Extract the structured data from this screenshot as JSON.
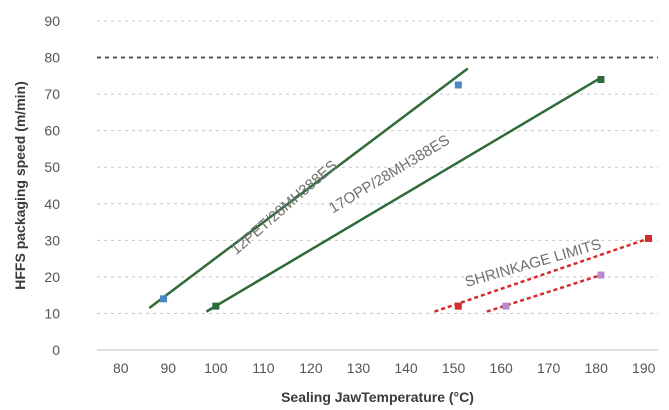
{
  "chart_data": {
    "type": "scatter",
    "title": "",
    "xlabel": "Sealing JawTemperature (°C)",
    "ylabel": "HFFS packaging speed (m/min)",
    "xlim": [
      75,
      193
    ],
    "ylim": [
      0,
      90
    ],
    "xticks": [
      80,
      90,
      100,
      110,
      120,
      130,
      140,
      150,
      160,
      170,
      180,
      190
    ],
    "yticks": [
      0,
      10,
      20,
      30,
      40,
      50,
      60,
      70,
      80,
      90
    ],
    "grid": "horizontal dashed",
    "reference_line": {
      "y": 80,
      "style": "dashed",
      "color": "#555555"
    },
    "series": [
      {
        "color": "#2e6b3a",
        "line_style": "solid",
        "trend": [
          [
            86,
            11.5
          ],
          [
            153,
            77
          ]
        ],
        "points": [
          {
            "x": 89,
            "y": 14,
            "color": "#4a86c8"
          },
          {
            "x": 151,
            "y": 72.5,
            "color": "#4a86c8"
          }
        ]
      },
      {
        "color": "#2e6b3a",
        "line_style": "solid",
        "trend": [
          [
            98,
            10.5
          ],
          [
            181,
            74.5
          ]
        ],
        "points": [
          {
            "x": 100,
            "y": 12,
            "color": "#2e6b3a"
          },
          {
            "x": 181,
            "y": 74,
            "color": "#2e6b3a"
          }
        ]
      },
      {
        "color": "#d62a2a",
        "line_style": "dashed",
        "trend": [
          [
            146,
            10.5
          ],
          [
            191,
            30.5
          ]
        ],
        "points": [
          {
            "x": 151,
            "y": 12,
            "color": "#d62a2a"
          },
          {
            "x": 191,
            "y": 30.5,
            "color": "#d62a2a"
          }
        ]
      },
      {
        "color": "#d62a2a",
        "line_style": "dashed",
        "trend": [
          [
            157,
            10.5
          ],
          [
            181,
            20.5
          ]
        ],
        "points": [
          {
            "x": 161,
            "y": 12,
            "color": "#b48ccf"
          },
          {
            "x": 181,
            "y": 20.5,
            "color": "#b48ccf"
          }
        ]
      }
    ],
    "annotations": [
      {
        "text": "12PET/28MH388ES",
        "x": 115,
        "y": 38,
        "angle_deg": -41
      },
      {
        "text": "17OPP/28MH388ES",
        "x": 137,
        "y": 47,
        "angle_deg": -31
      },
      {
        "text": "SHRINKAGE LIMITS",
        "x": 167,
        "y": 22.5,
        "angle_deg": -16
      }
    ]
  }
}
